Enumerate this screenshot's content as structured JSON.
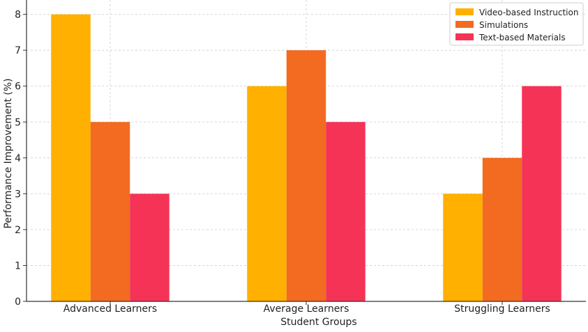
{
  "chart_data": {
    "type": "bar",
    "title": "",
    "xlabel": "Student Groups",
    "ylabel": "Performance Improvement (%)",
    "categories": [
      "Advanced Learners",
      "Average Learners",
      "Struggling Learners"
    ],
    "series": [
      {
        "name": "Video-based Instruction",
        "color": "#FFB000",
        "values": [
          8,
          6,
          3
        ]
      },
      {
        "name": "Simulations",
        "color": "#F26B21",
        "values": [
          5,
          7,
          4
        ]
      },
      {
        "name": "Text-based Materials",
        "color": "#F53356",
        "values": [
          3,
          5,
          6
        ]
      }
    ],
    "ylim": [
      0,
      8.4
    ],
    "yticks": [
      "0",
      "1",
      "2",
      "3",
      "4",
      "5",
      "6",
      "7",
      "8"
    ],
    "grid": true,
    "legend_position": "top-right"
  }
}
